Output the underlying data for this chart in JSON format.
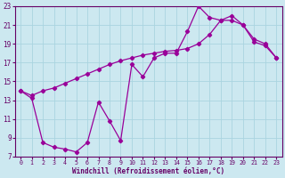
{
  "xlabel": "Windchill (Refroidissement éolien,°C)",
  "line_color": "#990099",
  "bg_color": "#cce8f0",
  "grid_color": "#aad4e0",
  "tick_color": "#660066",
  "label_color": "#660066",
  "xlim": [
    -0.5,
    23.5
  ],
  "ylim": [
    7,
    23
  ],
  "yticks": [
    7,
    9,
    11,
    13,
    15,
    17,
    19,
    21,
    23
  ],
  "xticks": [
    0,
    1,
    2,
    3,
    4,
    5,
    6,
    7,
    8,
    9,
    10,
    11,
    12,
    13,
    14,
    15,
    16,
    17,
    18,
    19,
    20,
    21,
    22,
    23
  ],
  "upper_line_x": [
    0,
    1,
    2,
    3,
    4,
    5,
    6,
    7,
    8,
    9,
    10,
    11,
    12,
    13,
    14,
    15,
    16,
    17,
    18,
    19,
    20,
    21,
    22,
    23
  ],
  "upper_line_y": [
    14.0,
    13.5,
    14.0,
    14.3,
    14.8,
    15.3,
    15.8,
    16.3,
    16.8,
    17.2,
    17.5,
    17.8,
    18.0,
    18.2,
    18.3,
    18.5,
    19.0,
    20.0,
    21.5,
    22.0,
    21.0,
    19.5,
    19.0,
    17.5
  ],
  "lower_line_x": [
    0,
    1,
    2,
    3,
    4,
    5,
    6,
    7,
    8,
    9,
    10,
    11,
    12,
    13,
    14,
    15,
    16,
    17,
    18,
    19,
    20,
    21,
    22,
    23
  ],
  "lower_line_y": [
    14.0,
    13.2,
    8.5,
    8.0,
    7.8,
    7.5,
    8.5,
    12.8,
    10.8,
    8.7,
    16.8,
    15.5,
    17.5,
    18.0,
    18.0,
    20.3,
    23.0,
    21.8,
    21.5,
    21.5,
    21.0,
    19.2,
    18.8,
    17.5
  ]
}
